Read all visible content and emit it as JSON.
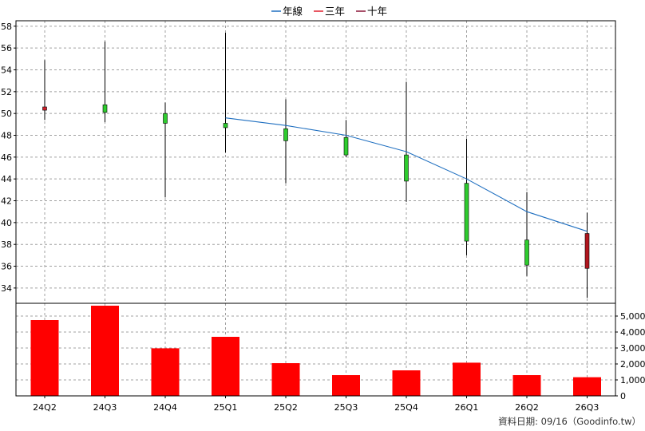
{
  "chart_data": {
    "type": "candlestick",
    "categories": [
      "24Q2",
      "24Q3",
      "24Q4",
      "25Q1",
      "25Q2",
      "25Q3",
      "25Q4",
      "26Q1",
      "26Q2",
      "26Q3"
    ],
    "legend": {
      "position": "top-center",
      "items": [
        {
          "label": "年線",
          "color": "#1f6fc0"
        },
        {
          "label": "三年",
          "color": "#e0202f"
        },
        {
          "label": "十年",
          "color": "#8a1538"
        }
      ]
    },
    "price_axis": {
      "ylim": [
        32.6,
        58.5
      ],
      "ticks": [
        34,
        36,
        38,
        40,
        42,
        44,
        46,
        48,
        50,
        52,
        54,
        56,
        58
      ],
      "side": "left",
      "grid": true
    },
    "candles": [
      {
        "category": "24Q2",
        "open": 50.6,
        "close": 50.3,
        "high": 54.9,
        "low": 49.4,
        "color": "#d0202a"
      },
      {
        "category": "24Q3",
        "open": 50.1,
        "close": 50.8,
        "high": 56.6,
        "low": 49.2,
        "color": "#2ecc2e"
      },
      {
        "category": "24Q4",
        "open": 49.1,
        "close": 50.0,
        "high": 51.0,
        "low": 42.3,
        "color": "#2ecc2e"
      },
      {
        "category": "25Q1",
        "open": 48.7,
        "close": 49.1,
        "high": 57.4,
        "low": 46.4,
        "color": "#2ecc2e"
      },
      {
        "category": "25Q2",
        "open": 47.5,
        "close": 48.6,
        "high": 51.3,
        "low": 43.6,
        "color": "#2ecc2e"
      },
      {
        "category": "25Q3",
        "open": 46.2,
        "close": 47.8,
        "high": 49.4,
        "low": 46.0,
        "color": "#2ecc2e"
      },
      {
        "category": "25Q4",
        "open": 43.8,
        "close": 46.2,
        "high": 52.9,
        "low": 41.9,
        "color": "#2ecc2e"
      },
      {
        "category": "26Q1",
        "open": 38.3,
        "close": 43.6,
        "high": 47.7,
        "low": 37.0,
        "color": "#2ecc2e"
      },
      {
        "category": "26Q2",
        "open": 36.1,
        "close": 38.4,
        "high": 42.8,
        "low": 35.1,
        "color": "#2ecc2e"
      },
      {
        "category": "26Q3",
        "open": 35.8,
        "close": 39.0,
        "high": 40.9,
        "low": 33.1,
        "color": "#b0161e"
      }
    ],
    "annual_line": {
      "name": "年線",
      "color": "#1f6fc0",
      "points": [
        {
          "category": "25Q1",
          "value": 49.6
        },
        {
          "category": "25Q2",
          "value": 48.9
        },
        {
          "category": "25Q3",
          "value": 48.0
        },
        {
          "category": "25Q4",
          "value": 46.5
        },
        {
          "category": "26Q1",
          "value": 44.0
        },
        {
          "category": "26Q2",
          "value": 41.0
        },
        {
          "category": "26Q3",
          "value": 39.2
        }
      ]
    },
    "volume_axis": {
      "ylim": [
        0,
        5800
      ],
      "ticks": [
        0,
        1000,
        2000,
        3000,
        4000,
        5000
      ],
      "tick_labels": [
        "0",
        "1,000",
        "2,000",
        "3,000",
        "4,000",
        "5,000"
      ],
      "side": "right"
    },
    "volume": {
      "color": "#ff0000",
      "values": [
        4750,
        5650,
        2980,
        3700,
        2050,
        1300,
        1600,
        2080,
        1300,
        1170
      ]
    },
    "source_note": "資料日期: 09/16（Goodinfo.tw）"
  }
}
